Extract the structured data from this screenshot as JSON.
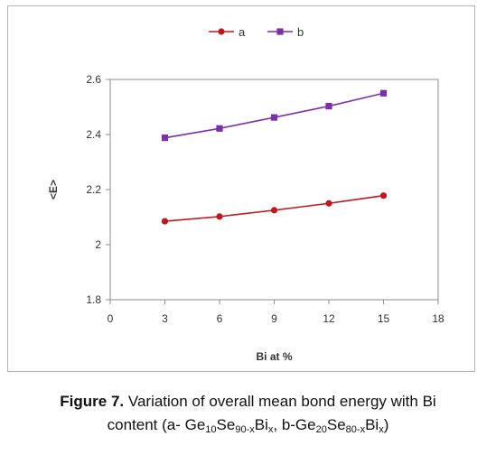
{
  "chart_data": {
    "type": "line",
    "xlabel": "Bi at %",
    "ylabel": "<E>",
    "x": [
      3,
      6,
      9,
      12,
      15
    ],
    "xlim": [
      0,
      18
    ],
    "xticks": [
      0,
      3,
      6,
      9,
      12,
      15,
      18
    ],
    "ylim": [
      1.8,
      2.6
    ],
    "yticks": [
      "1.8",
      "2",
      "2.2",
      "2.4",
      "2.6"
    ],
    "grid": false,
    "legend_position": "top-center",
    "series": [
      {
        "name": "a",
        "color": "#c0161d",
        "marker": "circle",
        "values": [
          2.085,
          2.102,
          2.125,
          2.15,
          2.178
        ]
      },
      {
        "name": "b",
        "color": "#7b2fa8",
        "marker": "square",
        "values": [
          2.388,
          2.422,
          2.462,
          2.503,
          2.55
        ]
      }
    ]
  },
  "caption": {
    "figure_label": "Figure 7.",
    "line1_text": " Variation of overall mean bond energy with Bi",
    "line2_start": "content (a- Ge",
    "sub1": "10",
    "t1": "Se",
    "sub2": "90-x",
    "t2": "Bi",
    "sub3": "x",
    "t3": ", b-Ge",
    "sub4": "20",
    "t4": "Se",
    "sub5": "80-x",
    "t5": "Bi",
    "sub6": "x",
    "t6": ")"
  }
}
